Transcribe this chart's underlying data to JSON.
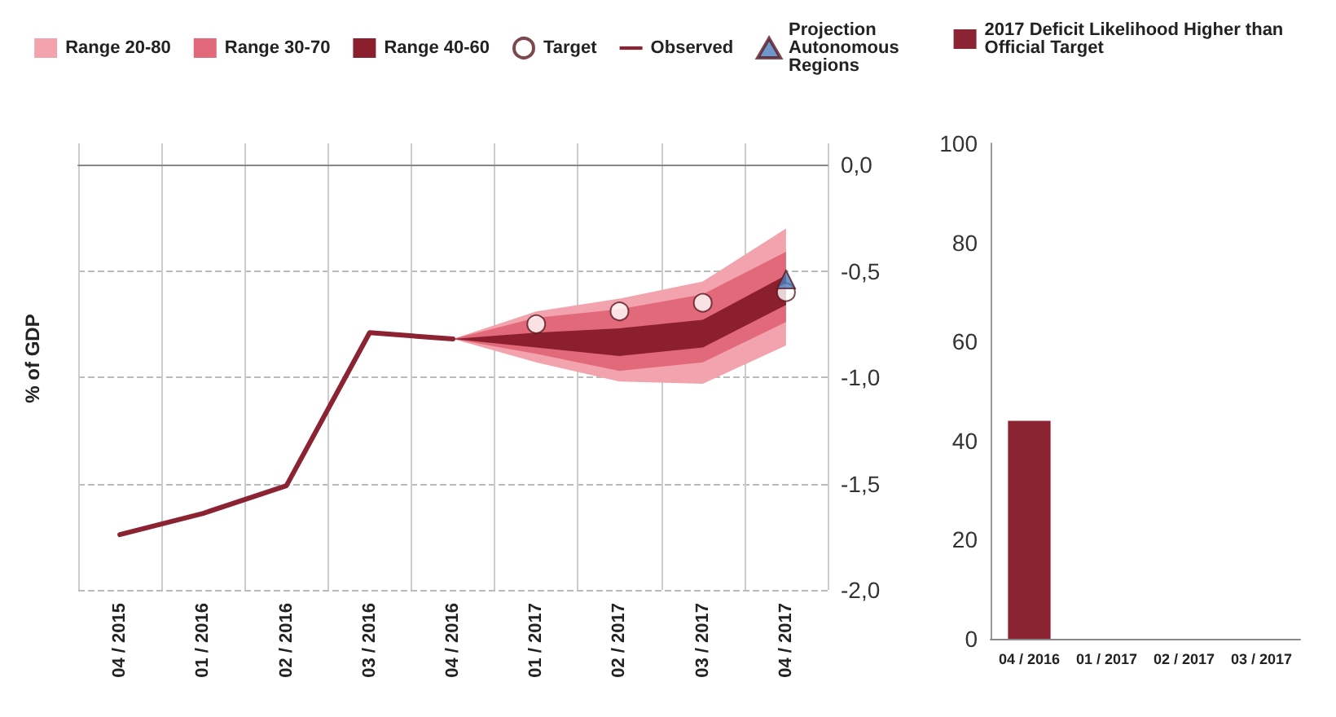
{
  "chart_data": [
    {
      "type": "line",
      "ylabel": "% of GDP",
      "categories": [
        "04 / 2015",
        "01 / 2016",
        "02 / 2016",
        "03 / 2016",
        "04 / 2016",
        "01 / 2017",
        "02 / 2017",
        "03 / 2017",
        "04 / 2017"
      ],
      "ylim": [
        -2.0,
        0.1
      ],
      "yticks": [
        {
          "value": -2.0,
          "label": "-2,0"
        },
        {
          "value": -1.5,
          "label": "-1,5"
        },
        {
          "value": -1.0,
          "label": "-1,0"
        },
        {
          "value": -0.5,
          "label": "-0,5"
        },
        {
          "value": 0.0,
          "label": "0,0"
        }
      ],
      "grid": true,
      "legend": "top",
      "series": [
        {
          "name": "Range 20-80",
          "type": "area",
          "color": "#f2a3ad",
          "values": [
            null,
            null,
            null,
            null,
            null,
            null,
            null,
            null,
            null
          ],
          "lower": [
            null,
            null,
            null,
            null,
            -0.82,
            -0.93,
            -1.02,
            -1.03,
            -0.85
          ],
          "upper": [
            null,
            null,
            null,
            null,
            -0.82,
            -0.69,
            -0.63,
            -0.55,
            -0.3
          ]
        },
        {
          "name": "Range 30-70",
          "type": "area",
          "color": "#e2697a",
          "values": [
            null,
            null,
            null,
            null,
            null,
            null,
            null,
            null,
            null
          ],
          "lower": [
            null,
            null,
            null,
            null,
            -0.82,
            -0.89,
            -0.97,
            -0.93,
            -0.74
          ],
          "upper": [
            null,
            null,
            null,
            null,
            -0.82,
            -0.72,
            -0.68,
            -0.61,
            -0.41
          ]
        },
        {
          "name": "Range 40-60",
          "type": "area",
          "color": "#8b1f2e",
          "values": [
            null,
            null,
            null,
            null,
            null,
            null,
            null,
            null,
            null
          ],
          "lower": [
            null,
            null,
            null,
            null,
            -0.82,
            -0.86,
            -0.9,
            -0.86,
            -0.66
          ],
          "upper": [
            null,
            null,
            null,
            null,
            -0.82,
            -0.79,
            -0.77,
            -0.73,
            -0.52
          ]
        },
        {
          "name": "Target",
          "type": "scatter",
          "marker": "circle",
          "color": "#ffffff",
          "values": [
            null,
            null,
            null,
            null,
            null,
            -0.75,
            -0.69,
            -0.65,
            -0.6
          ]
        },
        {
          "name": "Observed",
          "type": "line",
          "marker": "none",
          "color": "#8b2332",
          "values": [
            -1.74,
            -1.64,
            -1.51,
            -0.79,
            -0.82,
            null,
            null,
            null,
            null
          ]
        },
        {
          "name": "Projection Autonomous Regions",
          "type": "scatter",
          "marker": "triangle",
          "color": "#4a7ebf",
          "values": [
            null,
            null,
            null,
            null,
            null,
            null,
            null,
            null,
            -0.54
          ]
        }
      ]
    },
    {
      "type": "bar",
      "categories": [
        "04 / 2016",
        "01 / 2017",
        "02 / 2017",
        "03 / 2017"
      ],
      "ylim": [
        0,
        100
      ],
      "yticks": [
        0,
        20,
        40,
        60,
        80,
        100
      ],
      "grid": false,
      "legend": "top",
      "series": [
        {
          "name": "2017 Deficit Likelihood Higher than Official Target",
          "color": "#8b2332",
          "values": [
            44,
            null,
            null,
            null
          ]
        }
      ]
    }
  ]
}
